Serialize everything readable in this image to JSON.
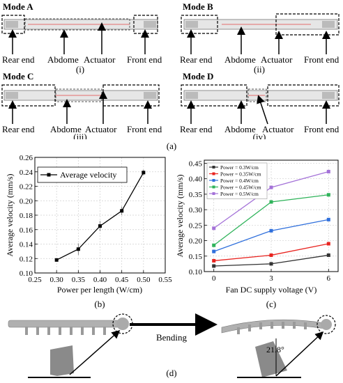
{
  "modes": [
    {
      "title": "Mode A",
      "labels": [
        "Rear end",
        "Abdome",
        "Actuator",
        "Front end"
      ],
      "roman": "(i)"
    },
    {
      "title": "Mode B",
      "labels": [
        "Rear end",
        "Abdome",
        "Actuator",
        "Front end"
      ],
      "roman": "(ii)"
    },
    {
      "title": "Mode C",
      "labels": [
        "Rear end",
        "Abdome",
        "Actuator",
        "Front end"
      ],
      "roman": "(iii)"
    },
    {
      "title": "Mode D",
      "labels": [
        "Rear end",
        "Abdome",
        "Actuator",
        "Front end"
      ],
      "roman": "(iv)"
    }
  ],
  "panel_labels": {
    "a": "(a)",
    "b": "(b)",
    "c": "(c)",
    "d": "(d)"
  },
  "panel_d": {
    "bending_label": "Bending",
    "angle_label": "21.8°"
  },
  "chart_data": [
    {
      "type": "line",
      "x": [
        0.3,
        0.35,
        0.4,
        0.45,
        0.5
      ],
      "series": [
        {
          "name": "Average velocity",
          "values": [
            0.118,
            0.133,
            0.165,
            0.186,
            0.239
          ],
          "color": "#000000"
        }
      ],
      "xlabel": "Power per length (W/cm)",
      "ylabel": "Average velocity (mm/s)",
      "xlim": [
        0.25,
        0.55
      ],
      "ylim": [
        0.1,
        0.26
      ],
      "xticks": [
        "0.25",
        "0.30",
        "0.35",
        "0.40",
        "0.45",
        "0.50",
        "0.55"
      ],
      "yticks": [
        "0.10",
        "0.12",
        "0.14",
        "0.16",
        "0.18",
        "0.20",
        "0.22",
        "0.24",
        "0.26"
      ],
      "grid": true,
      "legend": "top-left"
    },
    {
      "type": "line",
      "x": [
        0,
        3,
        6
      ],
      "series": [
        {
          "name": "Power = 0.3W/cm",
          "values": [
            0.118,
            0.125,
            0.153
          ],
          "color": "#333333"
        },
        {
          "name": "Power = 0.35W/cm",
          "values": [
            0.135,
            0.153,
            0.19
          ],
          "color": "#e8231f"
        },
        {
          "name": "Power = 0.4W/cm",
          "values": [
            0.165,
            0.232,
            0.268
          ],
          "color": "#2f6fdc"
        },
        {
          "name": "Power = 0.45W/cm",
          "values": [
            0.185,
            0.325,
            0.348
          ],
          "color": "#2fb35a"
        },
        {
          "name": "Power = 0.5W/cm",
          "values": [
            0.24,
            0.372,
            0.423
          ],
          "color": "#a472d8"
        }
      ],
      "xlabel": "Fan DC supply voltage (V)",
      "ylabel": "Average velocity (mm/s)",
      "xlim": [
        -0.5,
        6.5
      ],
      "ylim": [
        0.1,
        0.46
      ],
      "xticks": [
        "0",
        "3",
        "6"
      ],
      "yticks": [
        "0.10",
        "0.15",
        "0.20",
        "0.25",
        "0.30",
        "0.35",
        "0.40",
        "0.45"
      ],
      "grid": true,
      "legend": "top-left"
    }
  ]
}
